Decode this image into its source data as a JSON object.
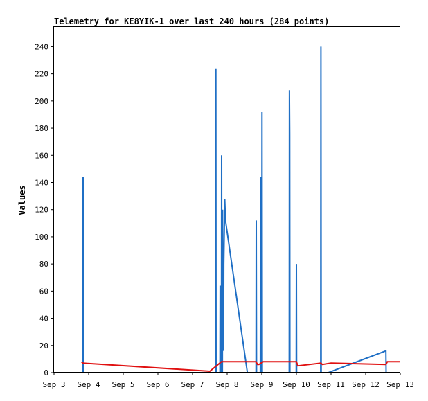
{
  "chart_data": {
    "type": "line",
    "title": "Telemetry for KE8YIK-1 over last 240 hours (284 points)",
    "xlabel": "",
    "ylabel": "Values",
    "x_ticks": [
      "Sep 3",
      "Sep 4",
      "Sep 5",
      "Sep 6",
      "Sep 7",
      "Sep 8",
      "Sep 9",
      "Sep 10",
      "Sep 11",
      "Sep 12",
      "Sep 13"
    ],
    "y_ticks": [
      0,
      20,
      40,
      60,
      80,
      100,
      120,
      140,
      160,
      180,
      200,
      220,
      240
    ],
    "xlim": [
      "Sep 3",
      "Sep 13"
    ],
    "ylim": [
      0,
      255
    ],
    "grid": false,
    "colors": {
      "series_blue": "#1f6fc5",
      "series_red": "#e01010",
      "series_black": "#000000",
      "axis": "#000000"
    },
    "series": [
      {
        "color": "#1f6fc5",
        "points": [
          [
            "Sep 3 18:00",
            0
          ],
          [
            "Sep 3 20:00",
            0
          ],
          [
            "Sep 3 20:10",
            144
          ],
          [
            "Sep 3 20:20",
            0
          ],
          [
            "Sep 7 16:00",
            0
          ],
          [
            "Sep 7 16:10",
            224
          ],
          [
            "Sep 7 16:20",
            0
          ],
          [
            "Sep 7 19:00",
            0
          ],
          [
            "Sep 7 19:10",
            64
          ],
          [
            "Sep 7 19:20",
            0
          ],
          [
            "Sep 7 20:00",
            0
          ],
          [
            "Sep 7 20:10",
            160
          ],
          [
            "Sep 7 20:20",
            0
          ],
          [
            "Sep 7 20:40",
            0
          ],
          [
            "Sep 7 20:50",
            120
          ],
          [
            "Sep 7 21:00",
            40
          ],
          [
            "Sep 7 21:30",
            16
          ],
          [
            "Sep 7 21:40",
            80
          ],
          [
            "Sep 7 22:20",
            128
          ],
          [
            "Sep 7 22:50",
            112
          ],
          [
            "Sep 8 14:00",
            0
          ],
          [
            "Sep 8 20:00",
            0
          ],
          [
            "Sep 8 20:10",
            112
          ],
          [
            "Sep 8 20:20",
            0
          ],
          [
            "Sep 8 23:00",
            0
          ],
          [
            "Sep 8 23:10",
            144
          ],
          [
            "Sep 8 23:20",
            0
          ],
          [
            "Sep 9 00:00",
            0
          ],
          [
            "Sep 9 00:10",
            192
          ],
          [
            "Sep 9 00:20",
            0
          ],
          [
            "Sep 9 19:00",
            0
          ],
          [
            "Sep 9 19:10",
            208
          ],
          [
            "Sep 9 19:20",
            176
          ],
          [
            "Sep 9 19:30",
            0
          ],
          [
            "Sep 9 23:50",
            0
          ],
          [
            "Sep 10 00:00",
            80
          ],
          [
            "Sep 10 00:10",
            0
          ],
          [
            "Sep 10 16:50",
            0
          ],
          [
            "Sep 10 17:00",
            240
          ],
          [
            "Sep 10 17:10",
            0
          ],
          [
            "Sep 10 22:00",
            0
          ],
          [
            "Sep 12 14:00",
            16
          ],
          [
            "Sep 12 14:10",
            0
          ],
          [
            "Sep 13 00:00",
            0
          ]
        ]
      },
      {
        "color": "#e01010",
        "points": [
          [
            "Sep 3 19:00",
            8
          ],
          [
            "Sep 3 20:00",
            7
          ],
          [
            "Sep 7 12:00",
            1
          ],
          [
            "Sep 7 20:00",
            8
          ],
          [
            "Sep 8 20:00",
            8
          ],
          [
            "Sep 8 21:00",
            6
          ],
          [
            "Sep 8 22:00",
            6
          ],
          [
            "Sep 9 01:00",
            8
          ],
          [
            "Sep 10 00:00",
            8
          ],
          [
            "Sep 10 01:00",
            5
          ],
          [
            "Sep 10 17:00",
            7
          ],
          [
            "Sep 10 18:00",
            6
          ],
          [
            "Sep 11 00:00",
            7
          ],
          [
            "Sep 12 14:00",
            6
          ],
          [
            "Sep 12 15:00",
            8
          ],
          [
            "Sep 13 00:00",
            8
          ]
        ]
      },
      {
        "color": "#000000",
        "points": [
          [
            "Sep 3 00:00",
            0
          ],
          [
            "Sep 13 00:00",
            0
          ]
        ]
      }
    ]
  }
}
